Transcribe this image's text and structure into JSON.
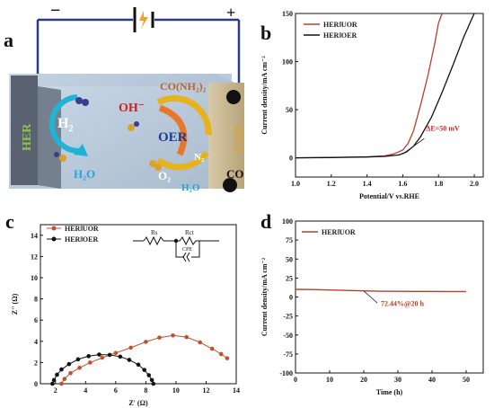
{
  "panel_labels": {
    "a": "a",
    "b": "b",
    "c": "c",
    "d": "d"
  },
  "schematic": {
    "minus": "−",
    "plus": "+",
    "her": "HER",
    "uor": "UOR",
    "h2": "H",
    "h2_sub": "2",
    "h2o_left": "H₂O",
    "oh": "OH⁻",
    "urea": "CO(NH₂)₂",
    "oer": "OER",
    "n2": "N₂",
    "o2": "O₂",
    "h2o_right": "H₂O",
    "co": "CO"
  },
  "chart_data": [
    {
      "id": "b",
      "type": "line",
      "xlabel": "Potential/V vs.RHE",
      "ylabel": "Current density/mA cm⁻²",
      "xlim": [
        1.0,
        2.05
      ],
      "ylim": [
        -20,
        150
      ],
      "xticks": [
        "1.0",
        "1.2",
        "1.4",
        "1.6",
        "1.8",
        "2.0"
      ],
      "yticks": [
        "0",
        "50",
        "100",
        "150"
      ],
      "legend_position": "top-left",
      "series": [
        {
          "name": "HERǁUOR",
          "color": "#b5402a",
          "x": [
            1.0,
            1.2,
            1.4,
            1.5,
            1.55,
            1.6,
            1.63,
            1.66,
            1.7,
            1.74,
            1.78,
            1.8,
            1.82
          ],
          "y": [
            0,
            0.5,
            1,
            2,
            4,
            8,
            15,
            28,
            55,
            85,
            120,
            140,
            150
          ]
        },
        {
          "name": "HERǁOER",
          "color": "#111111",
          "x": [
            1.0,
            1.2,
            1.4,
            1.5,
            1.58,
            1.62,
            1.66,
            1.7,
            1.76,
            1.82,
            1.88,
            1.94,
            1.98,
            2.0
          ],
          "y": [
            0,
            0.3,
            0.8,
            1.5,
            3,
            6,
            12,
            22,
            42,
            68,
            96,
            125,
            142,
            150
          ]
        }
      ],
      "annotation": "ΔE=50 mV"
    },
    {
      "id": "c",
      "type": "scatter",
      "xlabel": "Z' (Ω)",
      "ylabel": "Z'' (Ω)",
      "xlim": [
        1,
        14
      ],
      "ylim": [
        0,
        15
      ],
      "xticks": [
        "2",
        "4",
        "6",
        "8",
        "10",
        "12",
        "14"
      ],
      "yticks": [
        "0",
        "2",
        "4",
        "6",
        "8",
        "10",
        "12",
        "14"
      ],
      "legend_position": "top-left",
      "circuit": {
        "rs": "Rs",
        "rct": "Rct",
        "cpe": "CPE"
      },
      "series": [
        {
          "name": "HERǁUOR",
          "color": "#c0502e",
          "x": [
            2.4,
            2.6,
            3.0,
            3.6,
            4.3,
            5.1,
            6.0,
            7.0,
            8.0,
            8.9,
            9.8,
            10.7,
            11.6,
            12.4,
            13.0,
            13.4
          ],
          "y": [
            0.0,
            0.45,
            1.0,
            1.5,
            2.0,
            2.45,
            2.9,
            3.4,
            3.95,
            4.35,
            4.55,
            4.4,
            3.9,
            3.3,
            2.8,
            2.4
          ]
        },
        {
          "name": "HERǁOER",
          "color": "#111111",
          "x": [
            1.8,
            1.9,
            2.1,
            2.4,
            2.9,
            3.5,
            4.2,
            4.9,
            5.6,
            6.3,
            6.9,
            7.5,
            7.9,
            8.2,
            8.4,
            8.5
          ],
          "y": [
            0.0,
            0.35,
            0.85,
            1.35,
            1.85,
            2.3,
            2.6,
            2.75,
            2.72,
            2.55,
            2.25,
            1.8,
            1.3,
            0.8,
            0.35,
            0.0
          ]
        }
      ]
    },
    {
      "id": "d",
      "type": "line",
      "xlabel": "Time (h)",
      "ylabel": "Current density/mA cm⁻²",
      "xlim": [
        0,
        55
      ],
      "ylim": [
        -100,
        100
      ],
      "xticks": [
        "0",
        "10",
        "20",
        "30",
        "40",
        "50"
      ],
      "yticks": [
        "-100",
        "-75",
        "-50",
        "-25",
        "0",
        "25",
        "50",
        "75",
        "100"
      ],
      "legend_position": "top-left",
      "series": [
        {
          "name": "HERǁUOR",
          "color": "#b5402a",
          "x": [
            0,
            5,
            10,
            15,
            20,
            25,
            30,
            35,
            40,
            45,
            50
          ],
          "y": [
            10,
            9.8,
            9.2,
            8.6,
            8.0,
            7.6,
            7.4,
            7.3,
            7.3,
            7.2,
            7.2
          ]
        }
      ],
      "annotation": "72.44%@20 h"
    }
  ]
}
